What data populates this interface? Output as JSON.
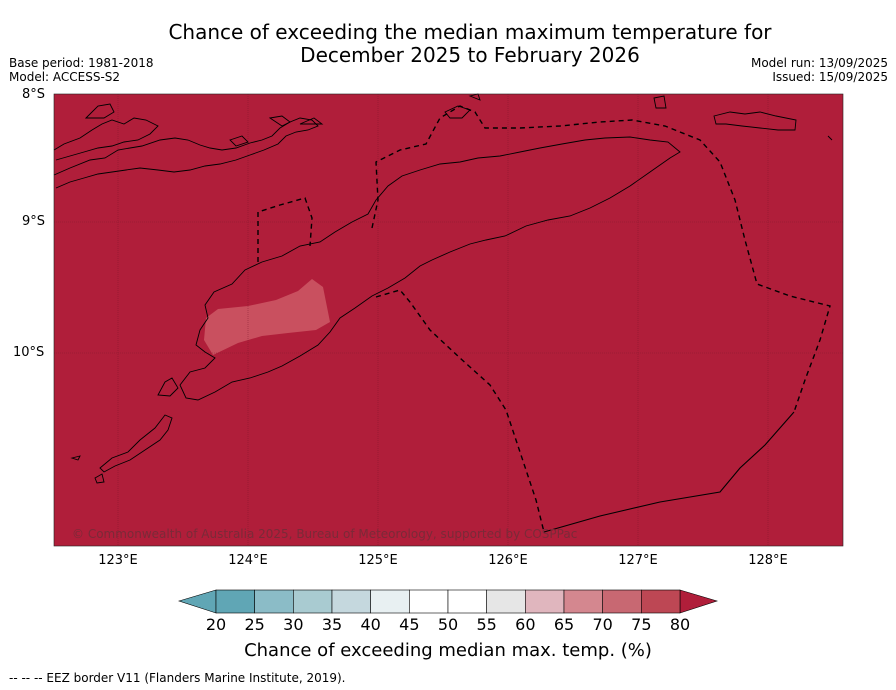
{
  "title_line1": "Chance of exceeding the median maximum temperature for",
  "title_line2": "December 2025 to February 2026",
  "base_period": "Base period: 1981-2018",
  "model": "Model: ACCESS-S2",
  "model_run": "Model run: 13/09/2025",
  "issued": "Issued: 15/09/2025",
  "lat_labels": [
    "8°S",
    "9°S",
    "10°S"
  ],
  "lon_labels": [
    "123°E",
    "124°E",
    "125°E",
    "126°E",
    "127°E",
    "128°E"
  ],
  "copyright": "© Commonwealth of Australia 2025, Bureau of Meteorology, supported by COSPPac",
  "colorbar": {
    "ticks": [
      "20",
      "25",
      "30",
      "35",
      "40",
      "45",
      "50",
      "55",
      "60",
      "65",
      "70",
      "75",
      "80"
    ],
    "colors": [
      "#60a6b5",
      "#8bbcc7",
      "#a9cbd1",
      "#c5d8de",
      "#e8f0f2",
      "#ffffff",
      "#ffffff",
      "#e6e6e6",
      "#e0b6be",
      "#d4878f",
      "#c86872",
      "#bd4754",
      "#b01e3a"
    ],
    "label": "Chance of exceeding median max. temp. (%)"
  },
  "map_colors": {
    "main": "#b01e3a",
    "patch": "#bd4754"
  },
  "footnote": "--  --  -- EEZ border V11 (Flanders Marine Institute, 2019)."
}
